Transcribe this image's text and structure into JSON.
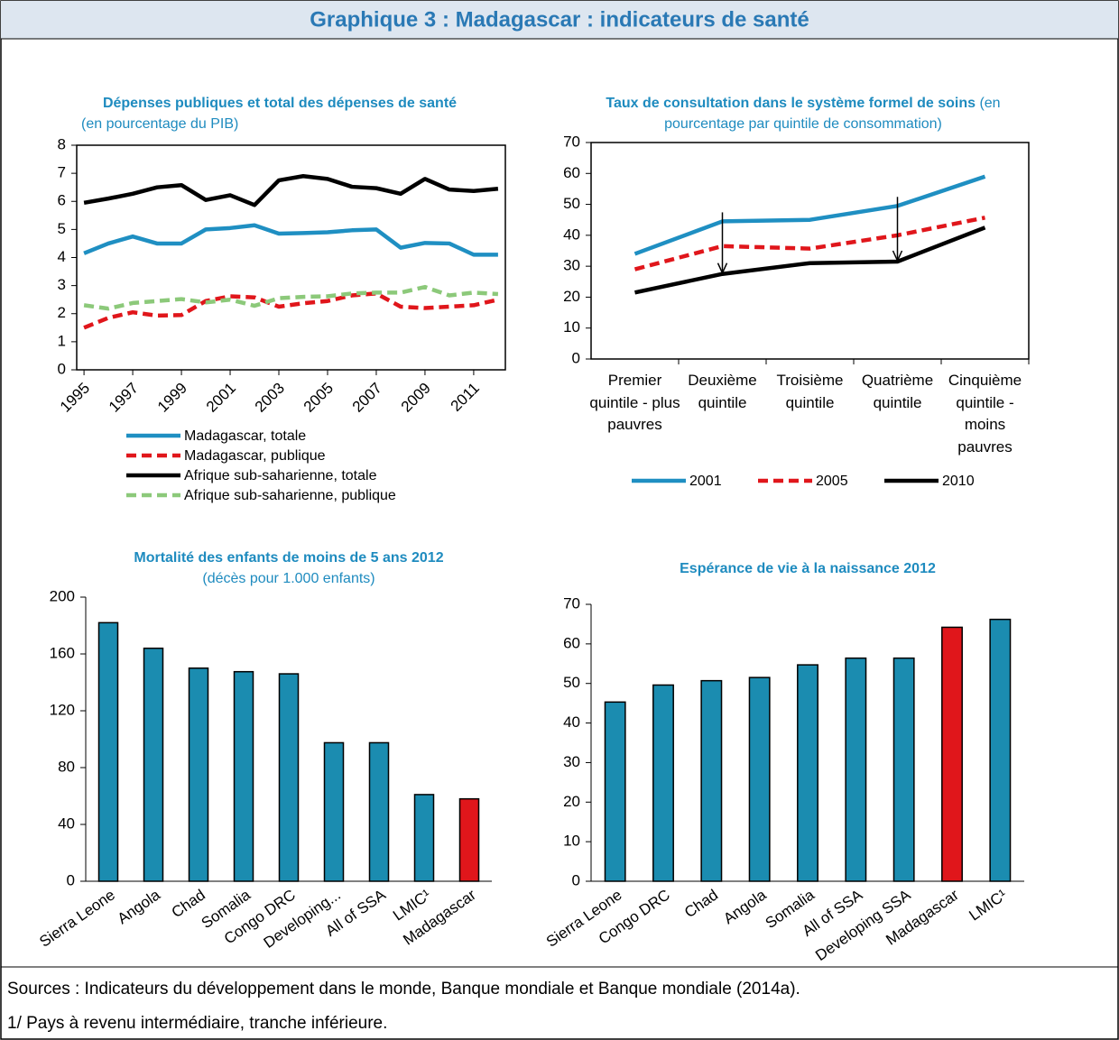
{
  "title": "Graphique 3 : Madagascar : indicateurs de santé",
  "notes": [
    "Sources : Indicateurs du développement dans le monde, Banque mondiale et Banque mondiale (2014a).",
    "1/ Pays à revenu intermédiaire, tranche inférieure."
  ],
  "chart_data": [
    {
      "type": "line",
      "title": "Dépenses publiques et total des dépenses de santé",
      "subtitle": "(en pourcentage du PIB)",
      "x": [
        1995,
        1996,
        1997,
        1998,
        1999,
        2000,
        2001,
        2002,
        2003,
        2004,
        2005,
        2006,
        2007,
        2008,
        2009,
        2010,
        2011,
        2012
      ],
      "xlim": [
        1994.7,
        2012.3
      ],
      "xticks": [
        1995,
        1997,
        1999,
        2001,
        2003,
        2005,
        2007,
        2009,
        2011
      ],
      "ylim": [
        0,
        8
      ],
      "yticks": [
        0,
        1,
        2,
        3,
        4,
        5,
        6,
        7,
        8
      ],
      "legend": "bottom",
      "series": [
        {
          "name": "Madagascar, totale",
          "color": "#1f8fc2",
          "dashed": false,
          "values": [
            4.15,
            4.5,
            4.75,
            4.5,
            4.5,
            5.0,
            5.05,
            5.15,
            4.85,
            4.87,
            4.9,
            4.97,
            5.0,
            4.35,
            4.52,
            4.5,
            4.1,
            4.1
          ]
        },
        {
          "name": "Madagascar, publique",
          "color": "#e0161b",
          "dashed": true,
          "values": [
            1.5,
            1.85,
            2.05,
            1.93,
            1.95,
            2.45,
            2.62,
            2.58,
            2.25,
            2.37,
            2.45,
            2.65,
            2.72,
            2.25,
            2.2,
            2.25,
            2.3,
            2.5
          ]
        },
        {
          "name": "Afrique sub-saharienne, totale",
          "color": "#000000",
          "dashed": false,
          "values": [
            5.95,
            6.1,
            6.27,
            6.5,
            6.58,
            6.05,
            6.22,
            5.87,
            6.75,
            6.9,
            6.8,
            6.52,
            6.47,
            6.27,
            6.8,
            6.42,
            6.37,
            6.45
          ]
        },
        {
          "name": "Afrique sub-saharienne, publique",
          "color": "#8cc97a",
          "dashed": true,
          "values": [
            2.3,
            2.18,
            2.38,
            2.45,
            2.52,
            2.4,
            2.5,
            2.28,
            2.55,
            2.6,
            2.62,
            2.72,
            2.75,
            2.75,
            2.95,
            2.65,
            2.75,
            2.7
          ]
        }
      ]
    },
    {
      "type": "line",
      "title": "Taux de consultation dans le système formel de soins",
      "subtitle": "(en pourcentage par quintile de consommation)",
      "categories": [
        "Premier quintile - plus pauvres",
        "Deuxième quintile",
        "Troisième quintile",
        "Quatrième quintile",
        "Cinquième quintile - moins pauvres"
      ],
      "ylim": [
        0,
        70
      ],
      "yticks": [
        0,
        10,
        20,
        30,
        40,
        50,
        60,
        70
      ],
      "legend": "bottom",
      "series": [
        {
          "name": "2001",
          "color": "#1f8fc2",
          "dashed": false,
          "values": [
            34,
            44.5,
            45,
            49.5,
            59
          ]
        },
        {
          "name": "2005",
          "color": "#e0161b",
          "dashed": true,
          "values": [
            29,
            36.5,
            35.7,
            40,
            45.7
          ]
        },
        {
          "name": "2010",
          "color": "#000000",
          "dashed": false,
          "values": [
            21.5,
            27.5,
            31,
            31.5,
            42.5
          ]
        }
      ]
    },
    {
      "type": "bar",
      "title": "Mortalité des enfants de moins de 5 ans 2012",
      "subtitle": "(décès pour 1.000 enfants)",
      "categories": [
        "Sierra Leone",
        "Angola",
        "Chad",
        "Somalia",
        "Congo DRC",
        "Developing...",
        "All of SSA",
        "LMIC¹",
        "Madagascar"
      ],
      "values": [
        182,
        164,
        150,
        147.5,
        146,
        97.5,
        97.5,
        61,
        58
      ],
      "colors": [
        "#1b8cb0",
        "#1b8cb0",
        "#1b8cb0",
        "#1b8cb0",
        "#1b8cb0",
        "#1b8cb0",
        "#1b8cb0",
        "#1b8cb0",
        "#e0161b"
      ],
      "ylim": [
        0,
        200
      ],
      "yticks": [
        0,
        40,
        80,
        120,
        160,
        200
      ]
    },
    {
      "type": "bar",
      "title": "Espérance de vie à la naissance 2012",
      "categories": [
        "Sierra Leone",
        "Congo DRC",
        "Chad",
        "Angola",
        "Somalia",
        "All of SSA",
        "Developing SSA",
        "Madagascar",
        "LMIC¹"
      ],
      "values": [
        45.3,
        49.6,
        50.7,
        51.5,
        54.7,
        56.4,
        56.4,
        64.2,
        66.2
      ],
      "colors": [
        "#1b8cb0",
        "#1b8cb0",
        "#1b8cb0",
        "#1b8cb0",
        "#1b8cb0",
        "#1b8cb0",
        "#1b8cb0",
        "#e0161b",
        "#1b8cb0"
      ],
      "ylim": [
        0,
        70
      ],
      "yticks": [
        0,
        10,
        20,
        30,
        40,
        50,
        60,
        70
      ]
    }
  ]
}
